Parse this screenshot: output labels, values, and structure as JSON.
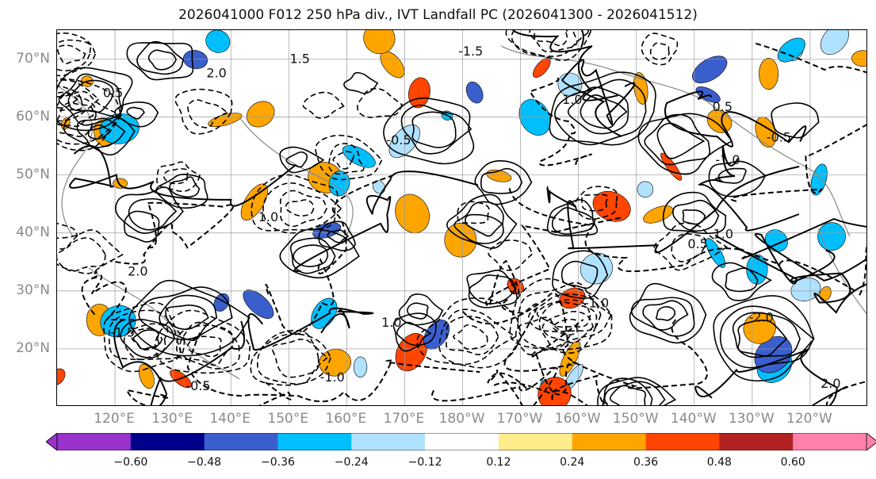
{
  "title": "2026041000 F012 250 hPa div., IVT Landfall PC (2026041300 - 2026041512)",
  "map": {
    "lat_labels": [
      "70°N",
      "60°N",
      "50°N",
      "40°N",
      "30°N",
      "20°N"
    ],
    "lat_values": [
      70,
      60,
      50,
      40,
      30,
      20
    ],
    "lat_range": [
      10,
      75
    ],
    "lon_labels": [
      "120°E",
      "130°E",
      "140°E",
      "150°E",
      "160°E",
      "170°E",
      "180°W",
      "170°W",
      "160°W",
      "150°W",
      "140°W",
      "130°W",
      "120°W"
    ],
    "lon_values": [
      120,
      130,
      140,
      150,
      160,
      170,
      180,
      190,
      200,
      210,
      220,
      230,
      240
    ],
    "lon_range": [
      110,
      250
    ],
    "contour_labels": [
      "2.0",
      "1.0",
      "-1.0",
      "1.5",
      "0.5",
      "-0.5",
      "1.0",
      "-1.5",
      "2.0",
      "-1.0",
      "0.5",
      "1.0",
      "-0.5",
      "-1.5",
      "2.0",
      "-2.0",
      "1.0",
      "-1.0",
      "0.5",
      "-0.5"
    ],
    "contour_colors": {
      "positive": "#000000",
      "negative": "#000000",
      "grid": "#9a9a9a",
      "coastline": "#888888"
    }
  },
  "colorbar": {
    "tick_labels": [
      "−0.60",
      "−0.48",
      "−0.36",
      "−0.24",
      "−0.12",
      "0.12",
      "0.24",
      "0.36",
      "0.48",
      "0.60"
    ],
    "bounds": [
      -0.6,
      -0.48,
      -0.36,
      -0.24,
      -0.12,
      0.12,
      0.24,
      0.36,
      0.48,
      0.6
    ],
    "colors": [
      "#9933cc",
      "#00008b",
      "#3a5fcd",
      "#00bfff",
      "#b0e2ff",
      "#ffffff",
      "#ffec8b",
      "#ffa500",
      "#ff4500",
      "#b22222",
      "#ff82ab"
    ],
    "extend": "both"
  }
}
